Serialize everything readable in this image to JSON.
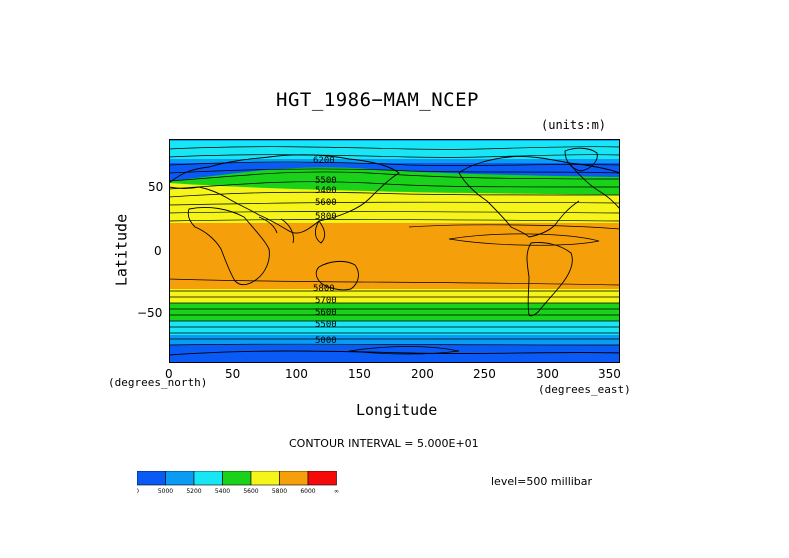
{
  "title": "HGT_1986−MAM_NCEP",
  "units": "(units:m)",
  "axes": {
    "ylabel": "Latitude",
    "xlabel": "Longitude",
    "x_units_left": "(degrees_north)",
    "x_units_right": "(degrees_east)",
    "x_ticks": [
      "0",
      "50",
      "100",
      "150",
      "200",
      "250",
      "300",
      "350"
    ],
    "y_ticks": [
      "50",
      "0",
      "−50"
    ]
  },
  "contour_interval": "CONTOUR INTERVAL = 5.000E+01",
  "level": "level=500 millibar",
  "contour_labels": [
    "6200",
    "5500",
    "5400",
    "5600",
    "5800",
    "5800",
    "5700",
    "5600",
    "5500",
    "5000"
  ],
  "colorbar": {
    "labels": [
      "0",
      "5000",
      "5200",
      "5400",
      "5600",
      "5800",
      "6000",
      "∞"
    ],
    "colors": [
      "#0a5af5",
      "#0a9cf5",
      "#19e6f5",
      "#19d219",
      "#f5f519",
      "#f59f0a",
      "#f50a0a"
    ]
  },
  "colors": {
    "ocean_dark_blue": "#0a5af5",
    "mid_blue": "#0a9cf5",
    "cyan": "#19e6f5",
    "green": "#19d219",
    "yellow": "#f5f519",
    "orange": "#f59f0a",
    "red": "#f50a0a"
  }
}
